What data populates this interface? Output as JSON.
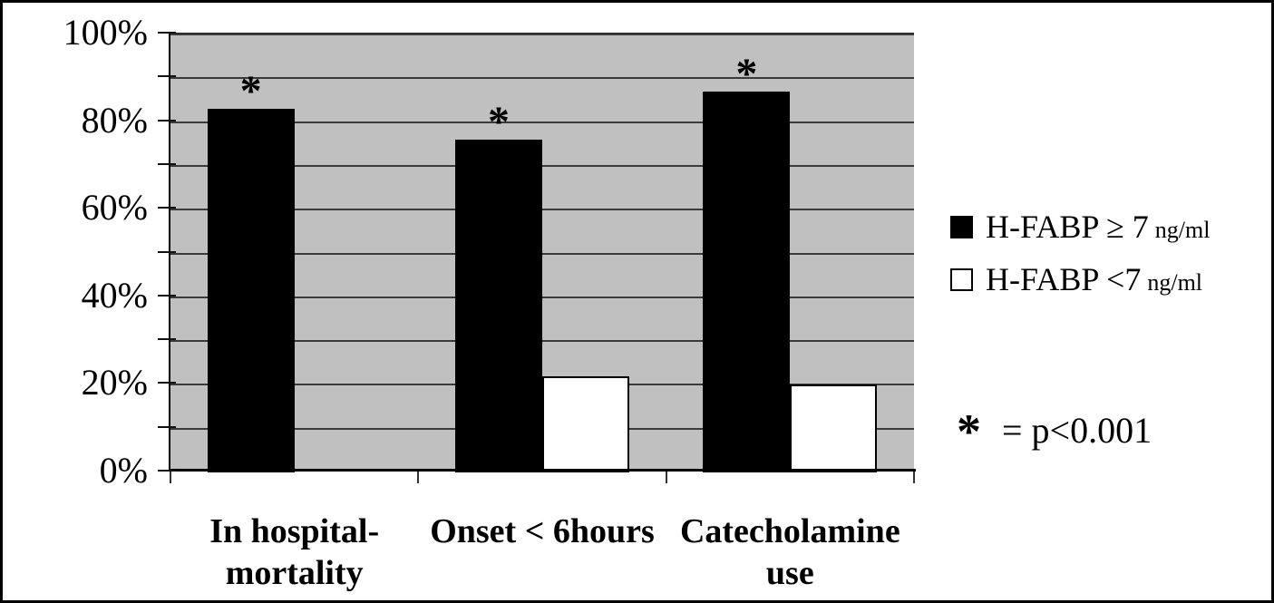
{
  "chart_data": {
    "type": "bar",
    "title": "",
    "xlabel": "",
    "ylabel": "",
    "categories": [
      "In hospital-mortality",
      "Onset < 6hours",
      "Catecholamine use"
    ],
    "category_lines": [
      [
        "In hospital-",
        "mortality"
      ],
      [
        "Onset < 6hours"
      ],
      [
        "Catecholamine",
        "use"
      ]
    ],
    "series": [
      {
        "name": "H-FABP ≥ 7 ng/ml",
        "color": "#000000",
        "values": [
          83,
          76,
          87
        ],
        "significance_marker": [
          true,
          true,
          true
        ]
      },
      {
        "name": "H-FABP <7 ng/ml",
        "color": "#ffffff",
        "values": [
          0,
          22,
          20
        ],
        "significance_marker": [
          false,
          false,
          false
        ]
      }
    ],
    "ylim": [
      0,
      100
    ],
    "ytick_major_step": 20,
    "gridline_step": 10,
    "ytick_labels": [
      "0%",
      "20%",
      "40%",
      "60%",
      "80%",
      "100%"
    ],
    "grid": "horizontal lines every 10%",
    "plot_background": "#c0c0c0",
    "legend_position": "right-outside",
    "annotation": "* = p<0.001"
  },
  "legend": {
    "items": [
      {
        "label": "H-FABP ≥ 7",
        "unit": "ng/ml",
        "swatch": "#000000"
      },
      {
        "label": "H-FABP <7",
        "unit": "ng/ml",
        "swatch": "#ffffff"
      }
    ]
  },
  "note": {
    "symbol": "*",
    "text": "= p<0.001"
  }
}
